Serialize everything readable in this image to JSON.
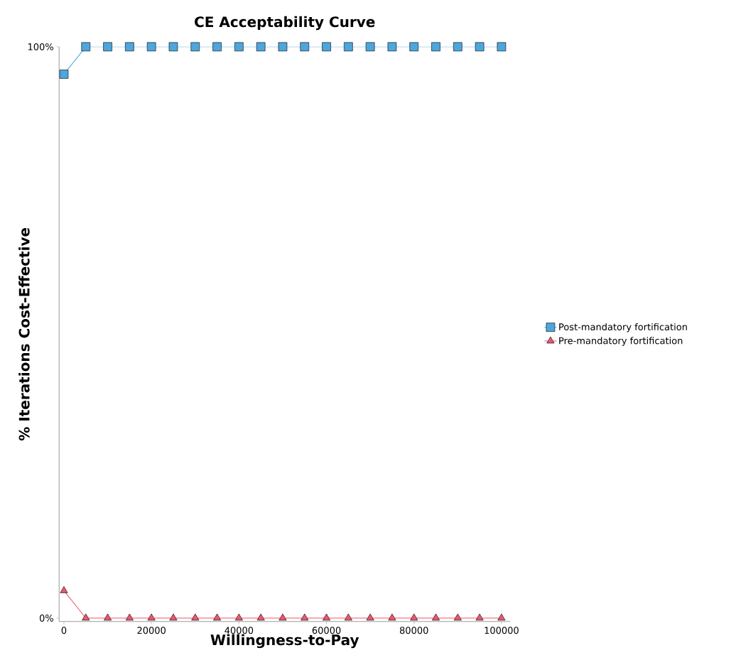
{
  "chart_data": {
    "type": "line",
    "title": "CE Acceptability Curve",
    "xlabel": "Willingness-to-Pay",
    "ylabel": "% Iterations Cost-Effective",
    "x": [
      0,
      5000,
      10000,
      15000,
      20000,
      25000,
      30000,
      35000,
      40000,
      45000,
      50000,
      55000,
      60000,
      65000,
      70000,
      75000,
      80000,
      85000,
      90000,
      95000,
      100000
    ],
    "series": [
      {
        "name": "Post-mandatory fortification",
        "color": "#4ea6dc",
        "marker": "square",
        "values": [
          95.2,
          100,
          100,
          100,
          100,
          100,
          100,
          100,
          100,
          100,
          100,
          100,
          100,
          100,
          100,
          100,
          100,
          100,
          100,
          100,
          100
        ]
      },
      {
        "name": "Pre-mandatory fortification",
        "color": "#e8596e",
        "marker": "triangle",
        "values": [
          4.8,
          0,
          0,
          0,
          0,
          0,
          0,
          0,
          0,
          0,
          0,
          0,
          0,
          0,
          0,
          0,
          0,
          0,
          0,
          0,
          0
        ]
      }
    ],
    "xlim": [
      -1100,
      102000
    ],
    "ylim": [
      -0.6,
      100
    ],
    "xticks": [
      0,
      20000,
      40000,
      60000,
      80000,
      100000
    ],
    "yticks": [
      {
        "value": 0,
        "label": "0%"
      },
      {
        "value": 100,
        "label": "100%"
      }
    ],
    "legend": "right",
    "grid": false
  }
}
